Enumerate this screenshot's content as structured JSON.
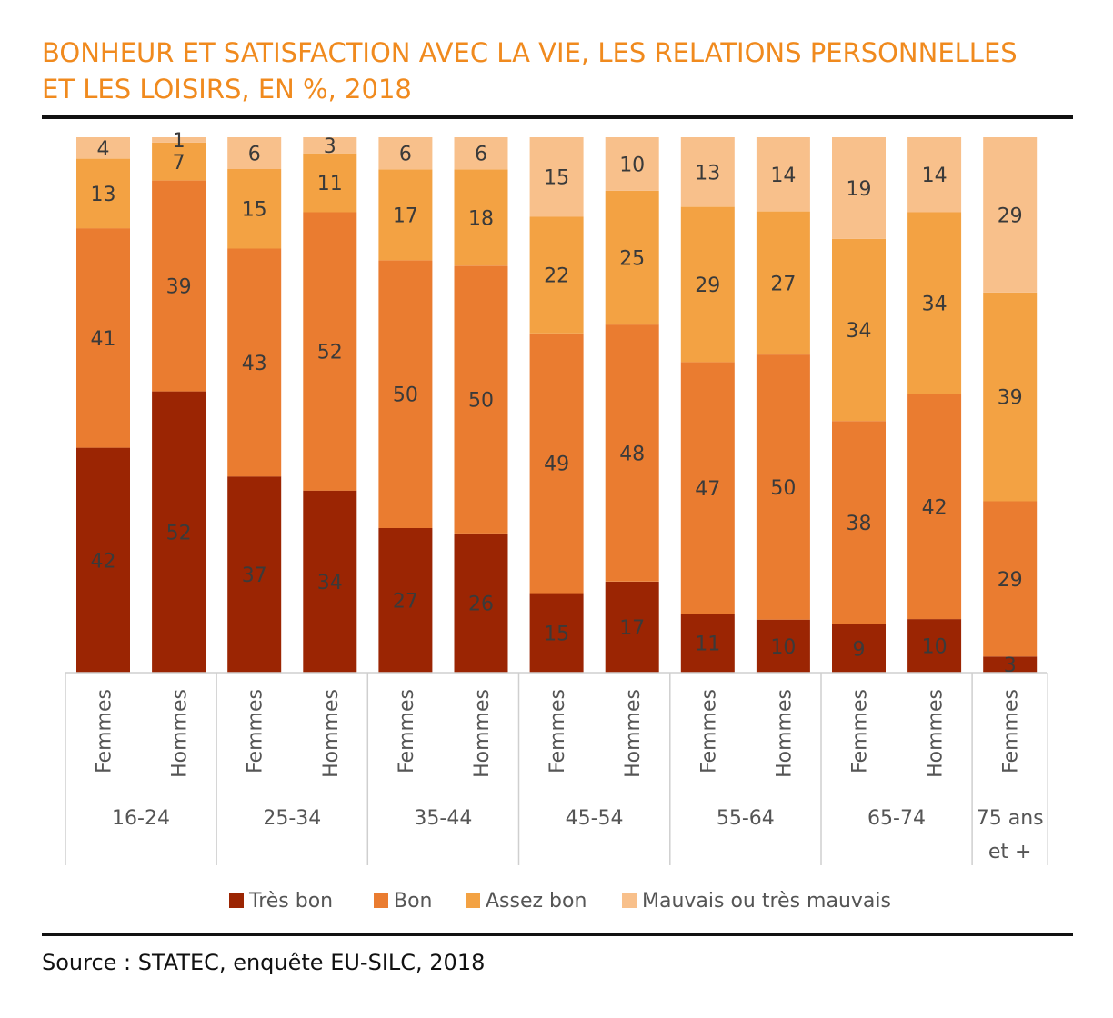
{
  "title_line1": "BONHEUR ET SATISFACTION AVEC LA VIE, LES RELATIONS PERSONNELLES",
  "title_line2": "ET LES LOISIRS, EN %, 2018",
  "source": "Source : STATEC, enquête EU-SILC, 2018",
  "chart_data": {
    "type": "bar",
    "stacked": true,
    "categories": [
      "Femmes",
      "Hommes",
      "Femmes",
      "Hommes",
      "Femmes",
      "Hommes",
      "Femmes",
      "Hommes",
      "Femmes",
      "Hommes",
      "Femmes",
      "Hommes",
      "Femmes"
    ],
    "groups": [
      {
        "label": "16-24",
        "span": 2
      },
      {
        "label": "25-34",
        "span": 2
      },
      {
        "label": "35-44",
        "span": 2
      },
      {
        "label": "45-54",
        "span": 2
      },
      {
        "label": "55-64",
        "span": 2
      },
      {
        "label": "65-74",
        "span": 2
      },
      {
        "label": "75 ans et +",
        "span": 1
      }
    ],
    "series": [
      {
        "name": "Très bon",
        "color": "#9b2503",
        "values": [
          42,
          52,
          37,
          34,
          27,
          26,
          15,
          17,
          11,
          10,
          9,
          10,
          3
        ]
      },
      {
        "name": "Bon",
        "color": "#ea7c30",
        "values": [
          41,
          39,
          43,
          52,
          50,
          50,
          49,
          48,
          47,
          50,
          38,
          42,
          29
        ]
      },
      {
        "name": "Assez bon",
        "color": "#f3a243",
        "values": [
          13,
          7,
          15,
          11,
          17,
          18,
          22,
          25,
          29,
          27,
          34,
          34,
          39
        ]
      },
      {
        "name": "Mauvais ou très mauvais",
        "color": "#f8c08b",
        "values": [
          4,
          1,
          6,
          3,
          6,
          6,
          15,
          10,
          13,
          14,
          19,
          14,
          29
        ]
      }
    ],
    "ylim": [
      0,
      100
    ],
    "legend": "bottom",
    "grid": false
  }
}
